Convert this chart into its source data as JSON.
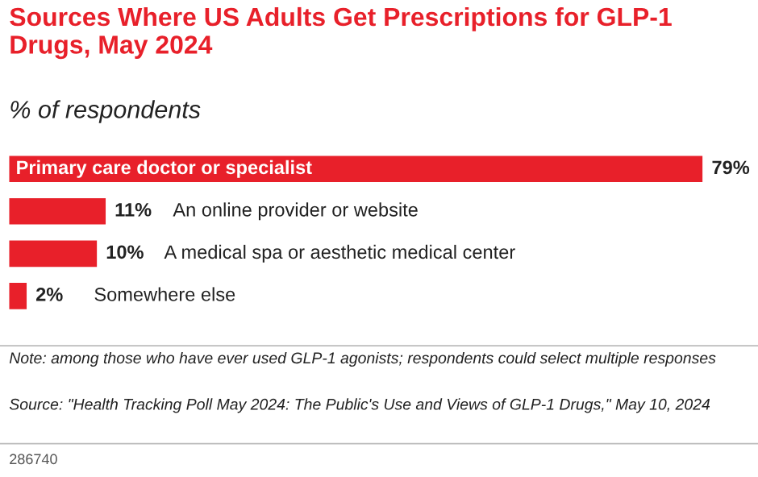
{
  "chart_data": {
    "type": "bar",
    "orientation": "horizontal",
    "title": "Sources Where US Adults Get Prescriptions for GLP-1 Drugs, May 2024",
    "subtitle": "% of respondents",
    "categories": [
      "Primary care doctor or specialist",
      "An online provider or website",
      "A medical spa or aesthetic medical center",
      "Somewhere else"
    ],
    "values": [
      79,
      11,
      10,
      2
    ],
    "value_labels": [
      "79%",
      "11%",
      "10%",
      "2%"
    ],
    "color": "#e8202a",
    "annotations": [
      "Note: among those who have ever used GLP-1 agonists; respondents could select multiple responses",
      "Source: \"Health Tracking Poll May 2024: The Public's Use and Views of GLP-1 Drugs,\" May 10, 2024",
      "286740"
    ]
  }
}
